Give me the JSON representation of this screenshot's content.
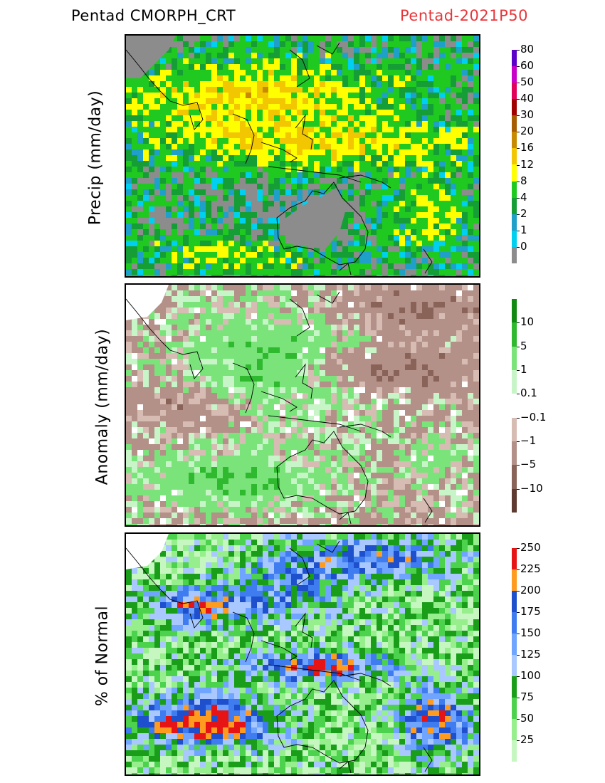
{
  "header": {
    "title_left": "Pentad CMORPH_CRT",
    "title_right": "Pentad-2021P50",
    "title_right_color": "#e8353a"
  },
  "panels": [
    {
      "id": "precip",
      "ylabel": "Precip (mm/day)",
      "colors": [
        "#8c8c8c",
        "#00d0f0",
        "#1ea0c8",
        "#159e35",
        "#1fc91f",
        "#ffff00",
        "#f2c600",
        "#c88a00",
        "#a85c00",
        "#a00000",
        "#e0005a",
        "#c800c8",
        "#5a00c8"
      ],
      "labels": [
        "0",
        "1",
        "2",
        "4",
        "8",
        "12",
        "16",
        "20",
        "30",
        "40",
        "50",
        "60",
        "80"
      ]
    },
    {
      "id": "anomaly",
      "ylabel": "Anomaly (mm/day)",
      "colors": [
        "#5e3a30",
        "#8a6358",
        "#b39088",
        "#d7bcb4",
        "#ffffff",
        "#c8f5c8",
        "#7ae37a",
        "#2eb92e",
        "#108a10"
      ],
      "labels": [
        "-10",
        "-5",
        "-1",
        "-0.1",
        "0.1",
        "1",
        "5",
        "10"
      ]
    },
    {
      "id": "pct",
      "ylabel": "% of Normal",
      "colors": [
        "#c6f7c1",
        "#96ef8c",
        "#4cd24c",
        "#1a9e1a",
        "#a8c8ff",
        "#6fa4ff",
        "#3e7cf0",
        "#1e4fcc",
        "#ff9b1f",
        "#e61414"
      ],
      "labels": [
        "25",
        "50",
        "75",
        "100",
        "125",
        "150",
        "175",
        "200",
        "225",
        "250"
      ]
    }
  ],
  "chart_data": [
    {
      "type": "heatmap",
      "title": "Pentad CMORPH_CRT",
      "subtitle": "Pentad-2021P50",
      "ylabel": "Precip (mm/day)",
      "colorbar_levels": [
        0,
        1,
        2,
        4,
        8,
        12,
        16,
        20,
        30,
        40,
        50,
        60,
        80
      ],
      "grid": false
    },
    {
      "type": "heatmap",
      "ylabel": "Anomaly (mm/day)",
      "colorbar_levels": [
        -10,
        -5,
        -1,
        -0.1,
        0.1,
        1,
        5,
        10
      ],
      "grid": false
    },
    {
      "type": "heatmap",
      "ylabel": "% of Normal",
      "colorbar_levels": [
        25,
        50,
        75,
        100,
        125,
        150,
        175,
        200,
        225,
        250
      ],
      "grid": false
    }
  ]
}
